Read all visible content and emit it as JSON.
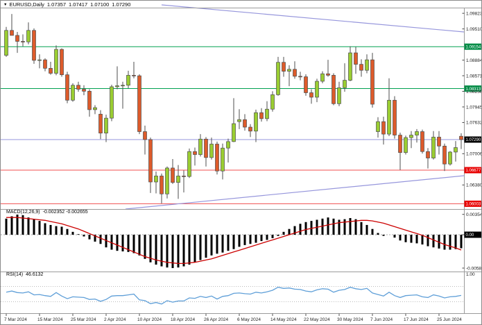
{
  "header": {
    "menu_arrow": "▼",
    "title": "EURUSD,Daily",
    "open": "1.07357",
    "high": "1.07417",
    "low": "1.07100",
    "close": "1.07290"
  },
  "colors": {
    "bull": "#9ACD32",
    "bear": "#DD5B2B",
    "candle_stroke": "#4d4d4d",
    "wick": "#4d4d4d",
    "level_green": "#00A050",
    "level_red": "#F05050",
    "level_blue": "#9696DC",
    "label_bg_green": "#008C46",
    "label_bg_red": "#E80000",
    "label_bg_black": "#000000",
    "macd_bar": "#000000",
    "macd_signal": "#CC0000",
    "rsi_line": "#5F9FD8",
    "grid": "#9a9a9a"
  },
  "chart_data": {
    "type": "candlestick",
    "symbol": "EURUSD",
    "timeframe": "Daily",
    "last_ohlc": {
      "open": 1.07357,
      "high": 1.07417,
      "low": 1.071,
      "close": 1.0729
    },
    "dates": [
      "2024-03-07",
      "2024-03-08",
      "2024-03-11",
      "2024-03-12",
      "2024-03-13",
      "2024-03-14",
      "2024-03-15",
      "2024-03-18",
      "2024-03-19",
      "2024-03-20",
      "2024-03-21",
      "2024-03-22",
      "2024-03-25",
      "2024-03-26",
      "2024-03-27",
      "2024-03-28",
      "2024-03-29",
      "2024-04-01",
      "2024-04-02",
      "2024-04-03",
      "2024-04-04",
      "2024-04-05",
      "2024-04-08",
      "2024-04-09",
      "2024-04-10",
      "2024-04-11",
      "2024-04-12",
      "2024-04-15",
      "2024-04-16",
      "2024-04-17",
      "2024-04-18",
      "2024-04-19",
      "2024-04-22",
      "2024-04-23",
      "2024-04-24",
      "2024-04-25",
      "2024-04-26",
      "2024-04-29",
      "2024-04-30",
      "2024-05-01",
      "2024-05-02",
      "2024-05-03",
      "2024-05-06",
      "2024-05-07",
      "2024-05-08",
      "2024-05-09",
      "2024-05-10",
      "2024-05-13",
      "2024-05-14",
      "2024-05-15",
      "2024-05-16",
      "2024-05-17",
      "2024-05-20",
      "2024-05-21",
      "2024-05-22",
      "2024-05-23",
      "2024-05-24",
      "2024-05-27",
      "2024-05-28",
      "2024-05-29",
      "2024-05-30",
      "2024-05-31",
      "2024-06-03",
      "2024-06-04",
      "2024-06-05",
      "2024-06-06",
      "2024-06-07",
      "2024-06-10",
      "2024-06-11",
      "2024-06-12",
      "2024-06-13",
      "2024-06-14",
      "2024-06-17",
      "2024-06-18",
      "2024-06-19",
      "2024-06-20",
      "2024-06-21",
      "2024-06-24",
      "2024-06-25",
      "2024-06-26",
      "2024-06-27",
      "2024-06-28",
      "2024-07-01"
    ],
    "candles": [
      [
        1.0898,
        1.0955,
        1.0895,
        1.0948
      ],
      [
        1.0948,
        1.0981,
        1.094,
        1.0938
      ],
      [
        1.0938,
        1.0945,
        1.0903,
        1.0926
      ],
      [
        1.0926,
        1.094,
        1.0916,
        1.0925
      ],
      [
        1.0925,
        1.0964,
        1.092,
        1.0948
      ],
      [
        1.0948,
        1.0952,
        1.0881,
        1.0888
      ],
      [
        1.0888,
        1.09,
        1.0872,
        1.0889
      ],
      [
        1.0889,
        1.0892,
        1.0866,
        1.0872
      ],
      [
        1.0872,
        1.0885,
        1.0859,
        1.0862
      ],
      [
        1.0862,
        1.0918,
        1.0858,
        1.091
      ],
      [
        1.091,
        1.0912,
        1.0855,
        1.0859
      ],
      [
        1.0859,
        1.0865,
        1.0802,
        1.0808
      ],
      [
        1.0808,
        1.0842,
        1.0805,
        1.0838
      ],
      [
        1.0838,
        1.0845,
        1.0825,
        1.083
      ],
      [
        1.083,
        1.0838,
        1.0818,
        1.0826
      ],
      [
        1.0826,
        1.083,
        1.0775,
        1.0789
      ],
      [
        1.0789,
        1.0798,
        1.078,
        1.0793
      ],
      [
        1.078,
        1.0788,
        1.073,
        1.0742
      ],
      [
        1.0742,
        1.0779,
        1.0724,
        1.0772
      ],
      [
        1.0772,
        1.0839,
        1.0766,
        1.0835
      ],
      [
        1.0835,
        1.0876,
        1.083,
        1.0837
      ],
      [
        1.0837,
        1.0845,
        1.0791,
        1.0838
      ],
      [
        1.0838,
        1.0867,
        1.0832,
        1.0858
      ],
      [
        1.0858,
        1.0885,
        1.0852,
        1.0857
      ],
      [
        1.0857,
        1.086,
        1.074,
        1.0745
      ],
      [
        1.0745,
        1.0757,
        1.0699,
        1.0729
      ],
      [
        1.0729,
        1.0733,
        1.0622,
        1.0644
      ],
      [
        1.0644,
        1.0665,
        1.0621,
        1.0656
      ],
      [
        1.0656,
        1.0661,
        1.0601,
        1.062
      ],
      [
        1.062,
        1.0675,
        1.0611,
        1.0672
      ],
      [
        1.0672,
        1.069,
        1.064,
        1.0643
      ],
      [
        1.0643,
        1.0678,
        1.061,
        1.0656
      ],
      [
        1.0656,
        1.0667,
        1.0623,
        1.0655
      ],
      [
        1.0655,
        1.0711,
        1.0652,
        1.0705
      ],
      [
        1.0705,
        1.0713,
        1.0677,
        1.0699
      ],
      [
        1.0699,
        1.074,
        1.0695,
        1.073
      ],
      [
        1.073,
        1.0734,
        1.0675,
        1.0693
      ],
      [
        1.0693,
        1.0733,
        1.0689,
        1.072
      ],
      [
        1.072,
        1.0725,
        1.0659,
        1.0666
      ],
      [
        1.0666,
        1.0721,
        1.0649,
        1.0712
      ],
      [
        1.0712,
        1.0731,
        1.0683,
        1.0725
      ],
      [
        1.0725,
        1.0812,
        1.0724,
        1.0761
      ],
      [
        1.0765,
        1.079,
        1.075,
        1.0769
      ],
      [
        1.0769,
        1.078,
        1.0747,
        1.0754
      ],
      [
        1.0754,
        1.076,
        1.0734,
        1.0746
      ],
      [
        1.0746,
        1.0789,
        1.0724,
        1.0783
      ],
      [
        1.0783,
        1.0792,
        1.0765,
        1.0771
      ],
      [
        1.0771,
        1.0806,
        1.0766,
        1.079
      ],
      [
        1.079,
        1.0826,
        1.0785,
        1.0819
      ],
      [
        1.0819,
        1.0895,
        1.0817,
        1.0884
      ],
      [
        1.0884,
        1.0895,
        1.0855,
        1.0866
      ],
      [
        1.0866,
        1.0878,
        1.0836,
        1.087
      ],
      [
        1.087,
        1.0886,
        1.0851,
        1.0856
      ],
      [
        1.0856,
        1.0865,
        1.0848,
        1.0855
      ],
      [
        1.0855,
        1.086,
        1.0817,
        1.0823
      ],
      [
        1.0823,
        1.083,
        1.0801,
        1.0814
      ],
      [
        1.0814,
        1.0851,
        1.0804,
        1.0846
      ],
      [
        1.0846,
        1.0866,
        1.0842,
        1.0861
      ],
      [
        1.0861,
        1.0889,
        1.0855,
        1.0858
      ],
      [
        1.0858,
        1.0862,
        1.0798,
        1.0801
      ],
      [
        1.0801,
        1.0845,
        1.0796,
        1.0833
      ],
      [
        1.0833,
        1.0882,
        1.0825,
        1.0848
      ],
      [
        1.0848,
        1.0916,
        1.0846,
        1.0903
      ],
      [
        1.0903,
        1.0915,
        1.0861,
        1.088
      ],
      [
        1.088,
        1.089,
        1.0855,
        1.0868
      ],
      [
        1.0868,
        1.09,
        1.0862,
        1.0889
      ],
      [
        1.0889,
        1.0903,
        1.0793,
        1.08
      ],
      [
        1.0745,
        1.0774,
        1.0733,
        1.0765
      ],
      [
        1.0765,
        1.0775,
        1.0719,
        1.074
      ],
      [
        1.074,
        1.0852,
        1.0736,
        1.0808
      ],
      [
        1.0808,
        1.0816,
        1.0731,
        1.0738
      ],
      [
        1.0738,
        1.0743,
        1.0668,
        1.0703
      ],
      [
        1.0703,
        1.0737,
        1.0699,
        1.0733
      ],
      [
        1.0733,
        1.0746,
        1.0712,
        1.0738
      ],
      [
        1.0738,
        1.075,
        1.0723,
        1.0745
      ],
      [
        1.0745,
        1.0749,
        1.0701,
        1.0705
      ],
      [
        1.0705,
        1.0712,
        1.0671,
        1.0692
      ],
      [
        1.0692,
        1.0746,
        1.0689,
        1.0734
      ],
      [
        1.0734,
        1.0746,
        1.0699,
        1.0716
      ],
      [
        1.0716,
        1.0721,
        1.0666,
        1.068
      ],
      [
        1.068,
        1.0706,
        1.0677,
        1.0704
      ],
      [
        1.0704,
        1.0726,
        1.0685,
        1.0713
      ],
      [
        1.07357,
        1.07417,
        1.071,
        1.0729
      ]
    ],
    "price_axis": {
      "ticks": [
        "1.09823",
        "1.09510",
        "1.08884",
        "1.08571",
        "1.08258",
        "1.07945",
        "1.07632",
        "1.07006",
        "1.06380"
      ]
    },
    "levels": [
      {
        "price": 1.09154,
        "label": "1.09154",
        "color": "green"
      },
      {
        "price": 1.08313,
        "label": "1.08313",
        "color": "green"
      },
      {
        "price": 1.0729,
        "label": "1.07290",
        "color": "blue"
      },
      {
        "price": 1.06677,
        "label": "1.06677",
        "color": "red"
      },
      {
        "price": 1.06003,
        "label": "1.06003",
        "color": "red"
      }
    ],
    "trendlines": [
      {
        "x1": 232,
        "y1": 6,
        "x2": 668,
        "y2": 45,
        "role": "descending-resistance"
      },
      {
        "x1": 180,
        "y1": 300,
        "x2": 668,
        "y2": 252,
        "role": "ascending-support"
      }
    ],
    "date_axis": {
      "labels": [
        {
          "text": "7 Mar 2024",
          "index": 0
        },
        {
          "text": "15 Mar 2024",
          "index": 6
        },
        {
          "text": "25 Mar 2024",
          "index": 12
        },
        {
          "text": "2 Apr 2024",
          "index": 18
        },
        {
          "text": "10 Apr 2024",
          "index": 24
        },
        {
          "text": "18 Apr 2024",
          "index": 30
        },
        {
          "text": "26 Apr 2024",
          "index": 36
        },
        {
          "text": "6 May 2024",
          "index": 42
        },
        {
          "text": "14 May 2024",
          "index": 48
        },
        {
          "text": "22 May 2024",
          "index": 54
        },
        {
          "text": "30 May 2024",
          "index": 60
        },
        {
          "text": "7 Jun 2024",
          "index": 66
        },
        {
          "text": "17 Jun 2024",
          "index": 72
        },
        {
          "text": "25 Jun 2024",
          "index": 78
        }
      ]
    },
    "macd": {
      "label": "MACD(12,26,9)",
      "values_text": "-0.002352 -0.002655",
      "current_main": -0.002352,
      "current_signal": -0.002655,
      "scale_labels": [
        "0.00354",
        "0.00",
        "-0.0058"
      ],
      "boundary_scale_label": "1.00",
      "histogram": [
        0.0028,
        0.0032,
        0.0035,
        0.0034,
        0.003,
        0.0027,
        0.0024,
        0.002,
        0.0017,
        0.0015,
        0.0014,
        0.001,
        0.0005,
        0.0001,
        -0.0003,
        -0.0008,
        -0.0012,
        -0.0016,
        -0.0022,
        -0.0026,
        -0.0028,
        -0.0029,
        -0.003,
        -0.0032,
        -0.0036,
        -0.0042,
        -0.0048,
        -0.0052,
        -0.0055,
        -0.0057,
        -0.0058,
        -0.0057,
        -0.0055,
        -0.0052,
        -0.0048,
        -0.0044,
        -0.004,
        -0.0036,
        -0.0033,
        -0.0031,
        -0.0028,
        -0.0025,
        -0.0021,
        -0.0018,
        -0.0016,
        -0.0014,
        -0.0011,
        -0.0009,
        -0.0006,
        -0.0002,
        0.0005,
        0.001,
        0.0015,
        0.0019,
        0.0022,
        0.0024,
        0.0026,
        0.0028,
        0.003,
        0.0028,
        0.0026,
        0.0027,
        0.0029,
        0.0027,
        0.0022,
        0.0017,
        0.001,
        0.0003,
        -0.0002,
        0.0,
        -0.0005,
        -0.001,
        -0.0013,
        -0.0014,
        -0.0015,
        -0.0017,
        -0.002,
        -0.0022,
        -0.0024,
        -0.0026,
        -0.0026,
        -0.0025,
        -0.002352
      ],
      "signal": [
        0.003,
        0.003,
        0.003,
        0.0029,
        0.0028,
        0.0027,
        0.0026,
        0.0025,
        0.0023,
        0.0021,
        0.0019,
        0.0016,
        0.0013,
        0.001,
        0.0006,
        0.0002,
        -0.0002,
        -0.0006,
        -0.001,
        -0.0014,
        -0.0018,
        -0.0022,
        -0.0026,
        -0.003,
        -0.0034,
        -0.0038,
        -0.0041,
        -0.0044,
        -0.0046,
        -0.0048,
        -0.0049,
        -0.005,
        -0.005,
        -0.0049,
        -0.0048,
        -0.0046,
        -0.0044,
        -0.0042,
        -0.0039,
        -0.0036,
        -0.0033,
        -0.003,
        -0.0027,
        -0.0024,
        -0.0021,
        -0.0018,
        -0.0015,
        -0.0012,
        -0.0009,
        -0.0006,
        -0.0003,
        0.0,
        0.0003,
        0.0006,
        0.0009,
        0.0011,
        0.0013,
        0.0015,
        0.0017,
        0.0019,
        0.0021,
        0.0022,
        0.0023,
        0.0024,
        0.0025,
        0.0025,
        0.0024,
        0.0022,
        0.002,
        0.0017,
        0.0014,
        0.0011,
        0.0008,
        0.0005,
        0.0002,
        -0.0001,
        -0.0005,
        -0.0009,
        -0.0013,
        -0.0017,
        -0.002,
        -0.0023,
        -0.002655
      ]
    },
    "rsi": {
      "label": "RSI(14)",
      "value_text": "46.6132",
      "current": 46.6132,
      "levels": [
        70,
        30
      ],
      "series": [
        55,
        58,
        54,
        53,
        56,
        48,
        49,
        46,
        44,
        54,
        45,
        38,
        43,
        42,
        41,
        36,
        37,
        31,
        36,
        45,
        46,
        46,
        48,
        50,
        35,
        33,
        25,
        28,
        24,
        33,
        29,
        32,
        32,
        40,
        39,
        44,
        41,
        45,
        37,
        44,
        46,
        52,
        53,
        51,
        50,
        55,
        53,
        56,
        60,
        68,
        65,
        66,
        63,
        62,
        58,
        56,
        61,
        64,
        63,
        55,
        60,
        62,
        68,
        64,
        62,
        65,
        53,
        49,
        45,
        55,
        46,
        41,
        46,
        47,
        48,
        43,
        41,
        48,
        45,
        40,
        43,
        44,
        46.6132
      ]
    }
  }
}
